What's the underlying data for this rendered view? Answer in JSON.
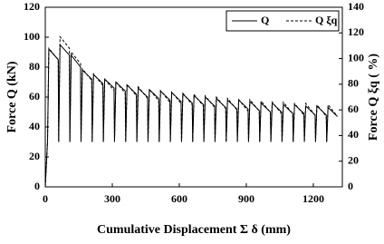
{
  "chart_data": {
    "type": "line",
    "x_label": "Cumulative Displacement Σ δ  (mm)",
    "y_label": "Force Q  (kN)",
    "y2_label": "Force Q ξq  ( %)",
    "x": [
      0,
      10,
      16,
      58,
      60,
      66,
      108,
      110,
      116,
      158,
      160,
      166,
      208,
      210,
      216,
      258,
      260,
      266,
      308,
      310,
      316,
      358,
      360,
      366,
      408,
      410,
      416,
      458,
      460,
      466,
      508,
      510,
      516,
      558,
      560,
      566,
      608,
      610,
      616,
      658,
      660,
      666,
      708,
      710,
      716,
      758,
      760,
      766,
      808,
      810,
      816,
      858,
      860,
      866,
      908,
      910,
      916,
      958,
      960,
      966,
      1008,
      1010,
      1016,
      1058,
      1060,
      1066,
      1108,
      1110,
      1116,
      1158,
      1160,
      1166,
      1208,
      1210,
      1216,
      1258,
      1260,
      1266,
      1308
    ],
    "series": [
      {
        "name": "Q",
        "color": "#000000",
        "line_style": "solid",
        "axis": "y",
        "values": [
          0,
          30,
          92,
          85,
          30,
          95,
          88,
          30,
          88,
          80,
          30,
          78,
          72,
          30,
          75,
          69,
          30,
          72,
          66,
          30,
          70,
          64,
          30,
          68,
          62,
          30,
          66,
          60,
          30,
          65,
          59,
          30,
          64,
          58,
          30,
          63,
          57,
          30,
          62,
          56,
          30,
          61,
          55,
          30,
          60,
          54,
          30,
          59,
          53,
          30,
          58,
          52,
          30,
          58,
          52,
          30,
          57,
          51,
          30,
          56,
          50,
          30,
          56,
          50,
          30,
          55,
          49,
          30,
          55,
          49,
          30,
          54,
          48,
          30,
          54,
          48,
          30,
          53,
          47
        ]
      },
      {
        "name": "Q ξq",
        "color": "#000000",
        "line_style": "dashed",
        "axis": "y2",
        "values": [
          0,
          35,
          108,
          99,
          35,
          117,
          108,
          35,
          105,
          96,
          35,
          92,
          83,
          35,
          88,
          79,
          35,
          84,
          75,
          35,
          82,
          73,
          35,
          80,
          71,
          35,
          78,
          69,
          35,
          76,
          67,
          35,
          75,
          66,
          35,
          74,
          65,
          35,
          73,
          64,
          35,
          72,
          63,
          35,
          71,
          62,
          35,
          70,
          61,
          35,
          69,
          60,
          35,
          68,
          59,
          35,
          68,
          59,
          35,
          67,
          58,
          35,
          66,
          57,
          35,
          66,
          57,
          35,
          65,
          56,
          35,
          65,
          56,
          35,
          64,
          55,
          35,
          64,
          55
        ]
      }
    ],
    "xlim": [
      0,
      1330
    ],
    "xticks": [
      0,
      300,
      600,
      900,
      1200
    ],
    "ylim": [
      0,
      120
    ],
    "yticks": [
      0,
      20,
      40,
      60,
      80,
      100,
      120
    ],
    "y2lim": [
      0,
      140
    ],
    "y2ticks": [
      0,
      20,
      40,
      60,
      80,
      100,
      120,
      140
    ],
    "legend": "upper right",
    "grid": false
  }
}
